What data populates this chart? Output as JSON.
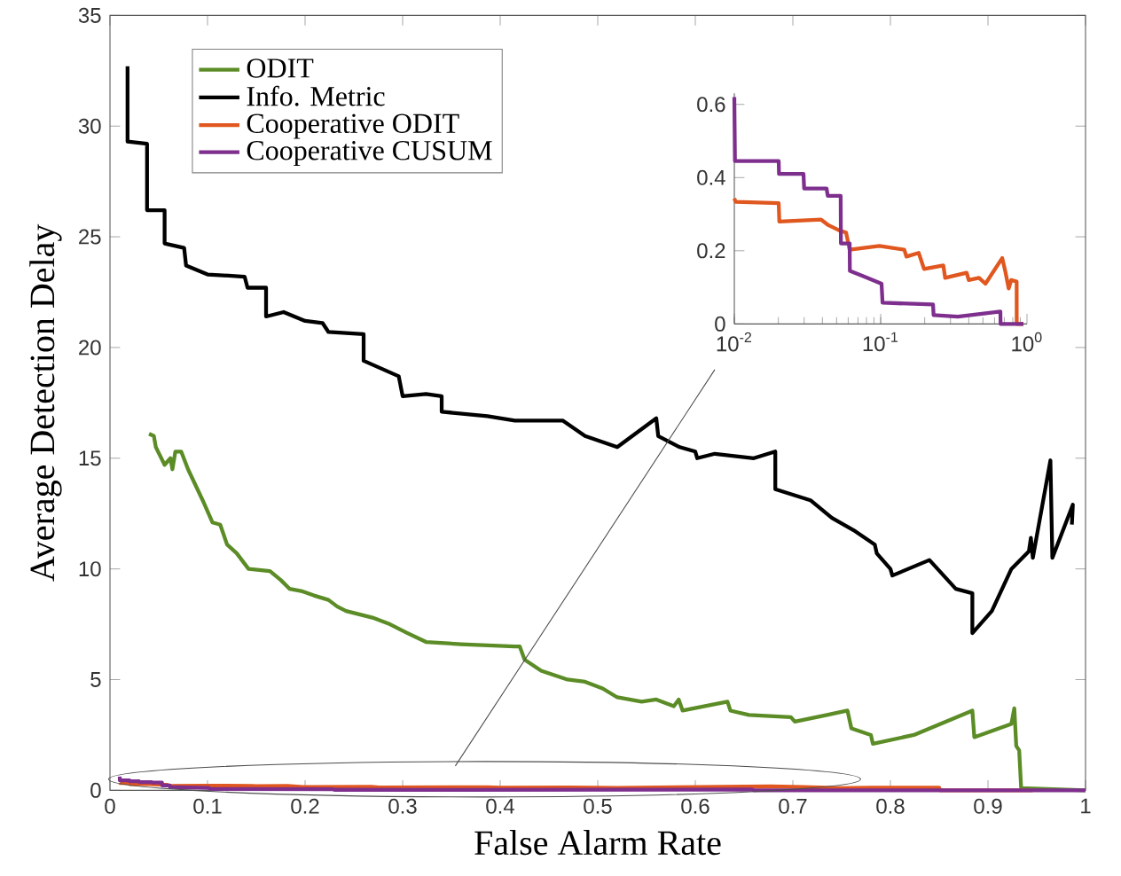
{
  "chart_data": [
    {
      "type": "line",
      "xlabel": "False Alarm Rate",
      "ylabel": "Average Detection Delay",
      "xlim": [
        0,
        1
      ],
      "ylim": [
        0,
        35
      ],
      "xticks": [
        0,
        0.1,
        0.2,
        0.3,
        0.4,
        0.5,
        0.6,
        0.7,
        0.8,
        0.9,
        1
      ],
      "yticks": [
        0,
        5,
        10,
        15,
        20,
        25,
        30,
        35
      ],
      "legend": "top left",
      "series": [
        {
          "name": "ODIT",
          "color": "#5b8c26",
          "x": [
            0.04,
            0.045,
            0.047,
            0.056,
            0.062,
            0.064,
            0.067,
            0.073,
            0.08,
            0.095,
            0.105,
            0.113,
            0.12,
            0.13,
            0.142,
            0.164,
            0.175,
            0.184,
            0.196,
            0.209,
            0.224,
            0.233,
            0.242,
            0.269,
            0.287,
            0.305,
            0.324,
            0.36,
            0.415,
            0.42,
            0.425,
            0.442,
            0.469,
            0.487,
            0.505,
            0.52,
            0.545,
            0.56,
            0.578,
            0.583,
            0.587,
            0.633,
            0.636,
            0.655,
            0.698,
            0.702,
            0.735,
            0.756,
            0.76,
            0.78,
            0.782,
            0.824,
            0.884,
            0.886,
            0.924,
            0.927,
            0.929,
            0.932,
            0.934,
            1
          ],
          "values": [
            16.1,
            16.0,
            15.5,
            14.7,
            15.0,
            14.5,
            15.3,
            15.3,
            14.5,
            13.1,
            12.1,
            12.0,
            11.1,
            10.7,
            10.0,
            9.9,
            9.5,
            9.1,
            9.0,
            8.8,
            8.6,
            8.3,
            8.1,
            7.8,
            7.5,
            7.1,
            6.7,
            6.6,
            6.5,
            6.5,
            5.9,
            5.4,
            5.0,
            4.9,
            4.6,
            4.2,
            4.0,
            4.1,
            3.8,
            4.1,
            3.6,
            4.0,
            3.6,
            3.4,
            3.3,
            3.1,
            3.4,
            3.6,
            2.8,
            2.5,
            2.1,
            2.5,
            3.6,
            2.4,
            3.0,
            3.7,
            2.0,
            1.8,
            0.1,
            0
          ]
        },
        {
          "name": "Info. Metric",
          "color": "#000000",
          "x": [
            0.018,
            0.018,
            0.038,
            0.038,
            0.056,
            0.056,
            0.076,
            0.078,
            0.1,
            0.138,
            0.141,
            0.16,
            0.16,
            0.178,
            0.2,
            0.218,
            0.224,
            0.26,
            0.26,
            0.296,
            0.3,
            0.324,
            0.34,
            0.34,
            0.387,
            0.415,
            0.464,
            0.487,
            0.52,
            0.56,
            0.562,
            0.584,
            0.6,
            0.602,
            0.62,
            0.66,
            0.682,
            0.682,
            0.718,
            0.74,
            0.764,
            0.784,
            0.786,
            0.8,
            0.802,
            0.84,
            0.867,
            0.884,
            0.884,
            0.904,
            0.924,
            0.942,
            0.944,
            0.946,
            0.964,
            0.966,
            0.987,
            0.986
          ],
          "values": [
            32.7,
            29.3,
            29.2,
            26.2,
            26.2,
            24.7,
            24.5,
            23.7,
            23.3,
            23.2,
            22.7,
            22.7,
            21.4,
            21.6,
            21.2,
            21.1,
            20.7,
            20.6,
            19.4,
            18.7,
            17.8,
            17.9,
            17.8,
            17.1,
            16.9,
            16.7,
            16.7,
            16.0,
            15.5,
            16.8,
            16.0,
            15.5,
            15.3,
            15.0,
            15.2,
            15.0,
            15.3,
            13.6,
            13.1,
            12.3,
            11.7,
            11.1,
            10.7,
            10.0,
            9.7,
            10.4,
            9.1,
            8.9,
            7.1,
            8.1,
            10.0,
            10.8,
            11.4,
            10.5,
            14.9,
            10.5,
            12.9,
            12.0
          ]
        },
        {
          "name": "Cooperative ODIT",
          "color": "#e0571f",
          "x": [
            0.01,
            0.0102,
            0.0201,
            0.0203,
            0.0392,
            0.0439,
            0.0518,
            0.058,
            0.0614,
            0.098,
            0.145,
            0.15,
            0.182,
            0.198,
            0.268,
            0.276,
            0.387,
            0.4,
            0.47,
            0.52,
            0.677,
            0.71,
            0.75,
            0.78,
            0.85,
            0.851,
            0.946
          ],
          "values": [
            0.343,
            0.334,
            0.33,
            0.28,
            0.285,
            0.27,
            0.256,
            0.25,
            0.203,
            0.213,
            0.203,
            0.184,
            0.194,
            0.15,
            0.16,
            0.126,
            0.14,
            0.12,
            0.126,
            0.11,
            0.18,
            0.145,
            0.097,
            0.12,
            0.116,
            0,
            0
          ]
        },
        {
          "name": "Cooperative CUSUM",
          "color": "#7e2f8e",
          "x": [
            0.01,
            0.0101,
            0.0201,
            0.0202,
            0.0297,
            0.03,
            0.0427,
            0.0435,
            0.0533,
            0.0535,
            0.0614,
            0.0616,
            0.0767,
            0.1014,
            0.103,
            0.228,
            0.23,
            0.337,
            0.658,
            0.66,
            0.946,
            1
          ],
          "values": [
            0.62,
            0.445,
            0.445,
            0.41,
            0.41,
            0.37,
            0.37,
            0.35,
            0.35,
            0.22,
            0.22,
            0.145,
            0.13,
            0.11,
            0.058,
            0.053,
            0.024,
            0.02,
            0.034,
            0,
            0,
            0
          ]
        }
      ]
    },
    {
      "type": "line",
      "log": "x",
      "xlim": [
        0.01,
        1
      ],
      "ylim": [
        0,
        0.63
      ],
      "xticks": [
        {
          "value": 0.01,
          "label": "10$^{-2}$"
        },
        {
          "value": 0.1,
          "label": "10$^{-1}$"
        },
        {
          "value": 1,
          "label": "10$^{0}$"
        }
      ],
      "yticks": [
        0,
        0.2,
        0.4,
        0.6
      ],
      "series": [
        {
          "color": "#e0571f",
          "x": [
            0.01,
            0.0102,
            0.0201,
            0.0203,
            0.0392,
            0.0439,
            0.0518,
            0.058,
            0.0614,
            0.098,
            0.145,
            0.15,
            0.182,
            0.198,
            0.268,
            0.276,
            0.387,
            0.4,
            0.47,
            0.52,
            0.677,
            0.71,
            0.75,
            0.78,
            0.85,
            0.851,
            0.946
          ],
          "values": [
            0.343,
            0.334,
            0.33,
            0.28,
            0.285,
            0.27,
            0.256,
            0.25,
            0.203,
            0.213,
            0.203,
            0.184,
            0.194,
            0.15,
            0.16,
            0.126,
            0.14,
            0.12,
            0.126,
            0.11,
            0.18,
            0.145,
            0.097,
            0.12,
            0.116,
            0,
            0
          ]
        },
        {
          "color": "#7e2f8e",
          "x": [
            0.01,
            0.0101,
            0.0201,
            0.0202,
            0.0297,
            0.03,
            0.0427,
            0.0435,
            0.0533,
            0.0535,
            0.0614,
            0.0616,
            0.0767,
            0.1014,
            0.103,
            0.228,
            0.23,
            0.337,
            0.658,
            0.66,
            0.946
          ],
          "values": [
            0.62,
            0.445,
            0.445,
            0.41,
            0.41,
            0.37,
            0.37,
            0.35,
            0.35,
            0.22,
            0.22,
            0.145,
            0.13,
            0.11,
            0.058,
            0.053,
            0.024,
            0.02,
            0.034,
            0,
            0
          ]
        }
      ]
    }
  ]
}
